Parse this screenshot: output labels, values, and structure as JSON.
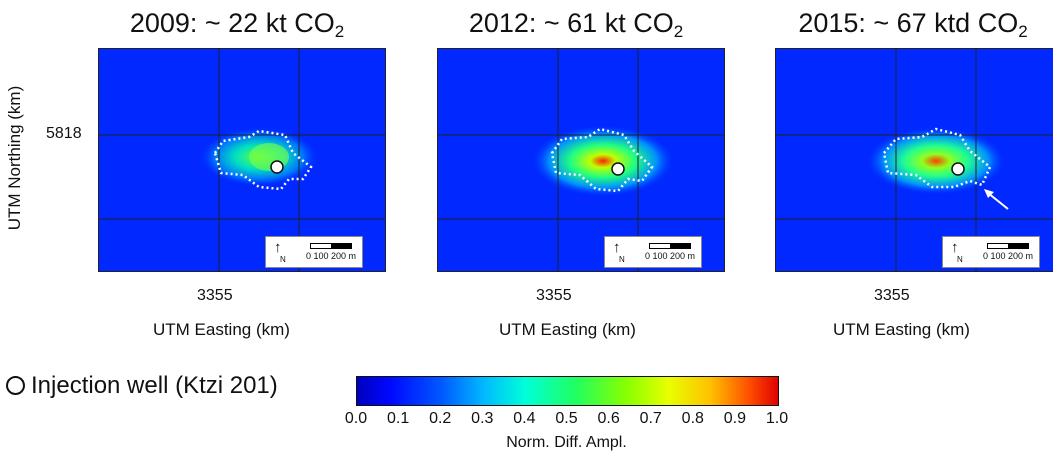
{
  "panels": [
    {
      "title_main": "2009: ~ 22 kt CO",
      "title_sub": "2"
    },
    {
      "title_main": "2012: ~ 61 kt CO",
      "title_sub": "2"
    },
    {
      "title_main": "2015: ~ 67 ktd CO",
      "title_sub": "2"
    }
  ],
  "y_tick": "5818",
  "y_axis_title": "UTM Northing (km)",
  "x_tick": "3355",
  "x_axis_title": "UTM Easting (km)",
  "north_label": "N",
  "scale_label": "0 100 200 m",
  "legend_well": "Injection well (Ktzi 201)",
  "colorbar": {
    "ticks": [
      "0.0",
      "0.1",
      "0.2",
      "0.3",
      "0.4",
      "0.5",
      "0.6",
      "0.7",
      "0.8",
      "0.9",
      "1.0"
    ],
    "title": "Norm. Diff. Ampl."
  }
}
